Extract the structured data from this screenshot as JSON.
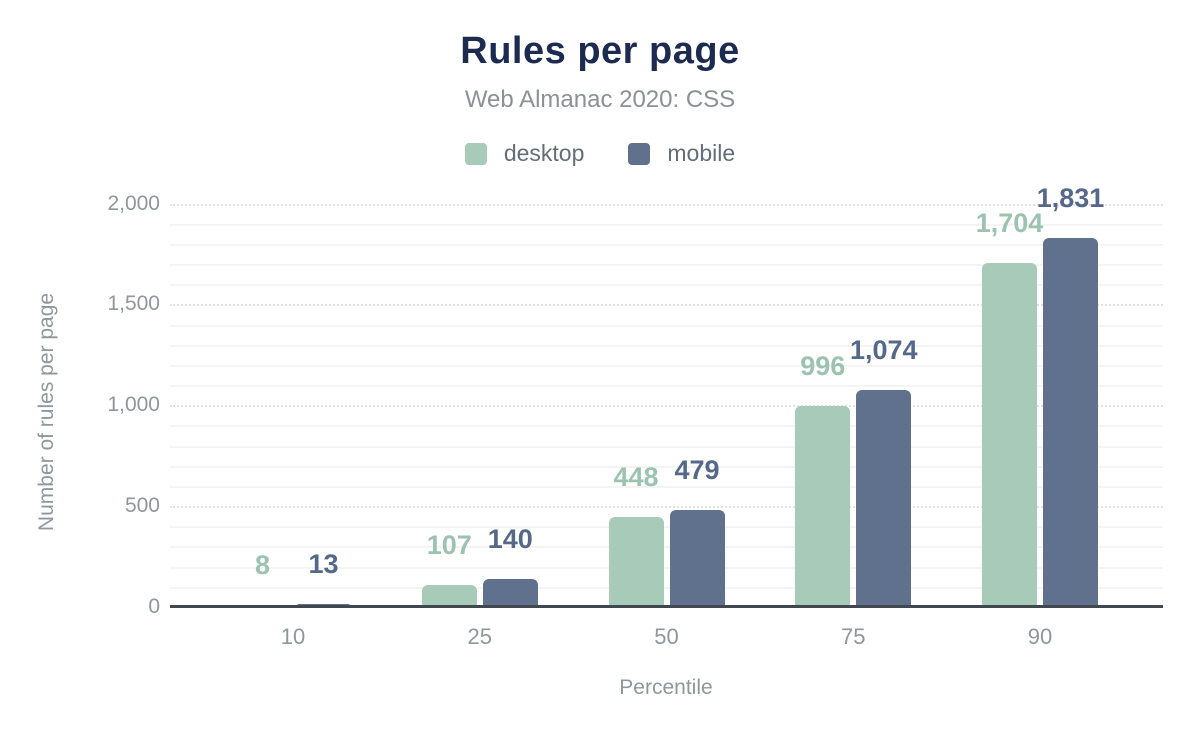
{
  "chart_data": {
    "type": "bar",
    "title": "Rules per page",
    "subtitle": "Web Almanac 2020: CSS",
    "xlabel": "Percentile",
    "ylabel": "Number of rules per page",
    "categories": [
      "10",
      "25",
      "50",
      "75",
      "90"
    ],
    "series": [
      {
        "name": "desktop",
        "color": "#a7cab9",
        "label_color": "#9cc2b0",
        "values": [
          8,
          107,
          448,
          996,
          1704
        ],
        "labels": [
          "8",
          "107",
          "448",
          "996",
          "1,704"
        ]
      },
      {
        "name": "mobile",
        "color": "#60718e",
        "label_color": "#56688a",
        "values": [
          13,
          140,
          479,
          1074,
          1831
        ],
        "labels": [
          "13",
          "140",
          "479",
          "1,074",
          "1,831"
        ]
      }
    ],
    "ylim": [
      0,
      2000
    ],
    "yticks": [
      {
        "value": 0,
        "label": "0"
      },
      {
        "value": 500,
        "label": "500"
      },
      {
        "value": 1000,
        "label": "1,000"
      },
      {
        "value": 1500,
        "label": "1,500"
      },
      {
        "value": 2000,
        "label": "2,000"
      }
    ],
    "grid": {
      "minor_step": 100,
      "major_step": 500,
      "grid_on": true
    },
    "legend_position": "top",
    "colors": {
      "title": "#1e2b50",
      "subtitle": "#8b9196",
      "axis_text": "#8f969d",
      "legend_text": "#646e79",
      "axis_line": "#40474f"
    }
  }
}
